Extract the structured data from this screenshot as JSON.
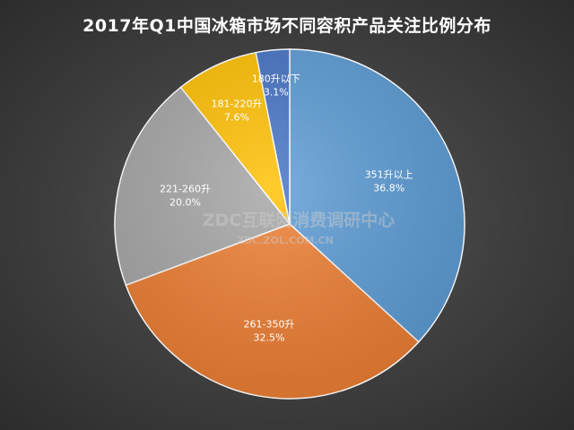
{
  "chart_data": {
    "type": "pie",
    "title": "2017年Q1中国冰箱市场不同容积产品关注比例分布",
    "unit": "%",
    "slices": [
      {
        "label": "351升以上",
        "value": 36.8,
        "value_text": "36.8%",
        "color": "#5b9bd5"
      },
      {
        "label": "261-350升",
        "value": 32.5,
        "value_text": "32.5%",
        "color": "#ed7d31"
      },
      {
        "label": "221-260升",
        "value": 20.0,
        "value_text": "20.0%",
        "color": "#a5a5a5"
      },
      {
        "label": "181-220升",
        "value": 7.6,
        "value_text": "7.6%",
        "color": "#ffc000"
      },
      {
        "label": "180升以下",
        "value": 3.1,
        "value_text": "3.1%",
        "color": "#4472c4"
      }
    ],
    "legend": "none",
    "start_angle": "12 o'clock",
    "direction": "clockwise"
  },
  "watermark": {
    "main": "ZDC互联网消费调研中心",
    "sub": "ZDC.ZOL.COM.CN"
  }
}
